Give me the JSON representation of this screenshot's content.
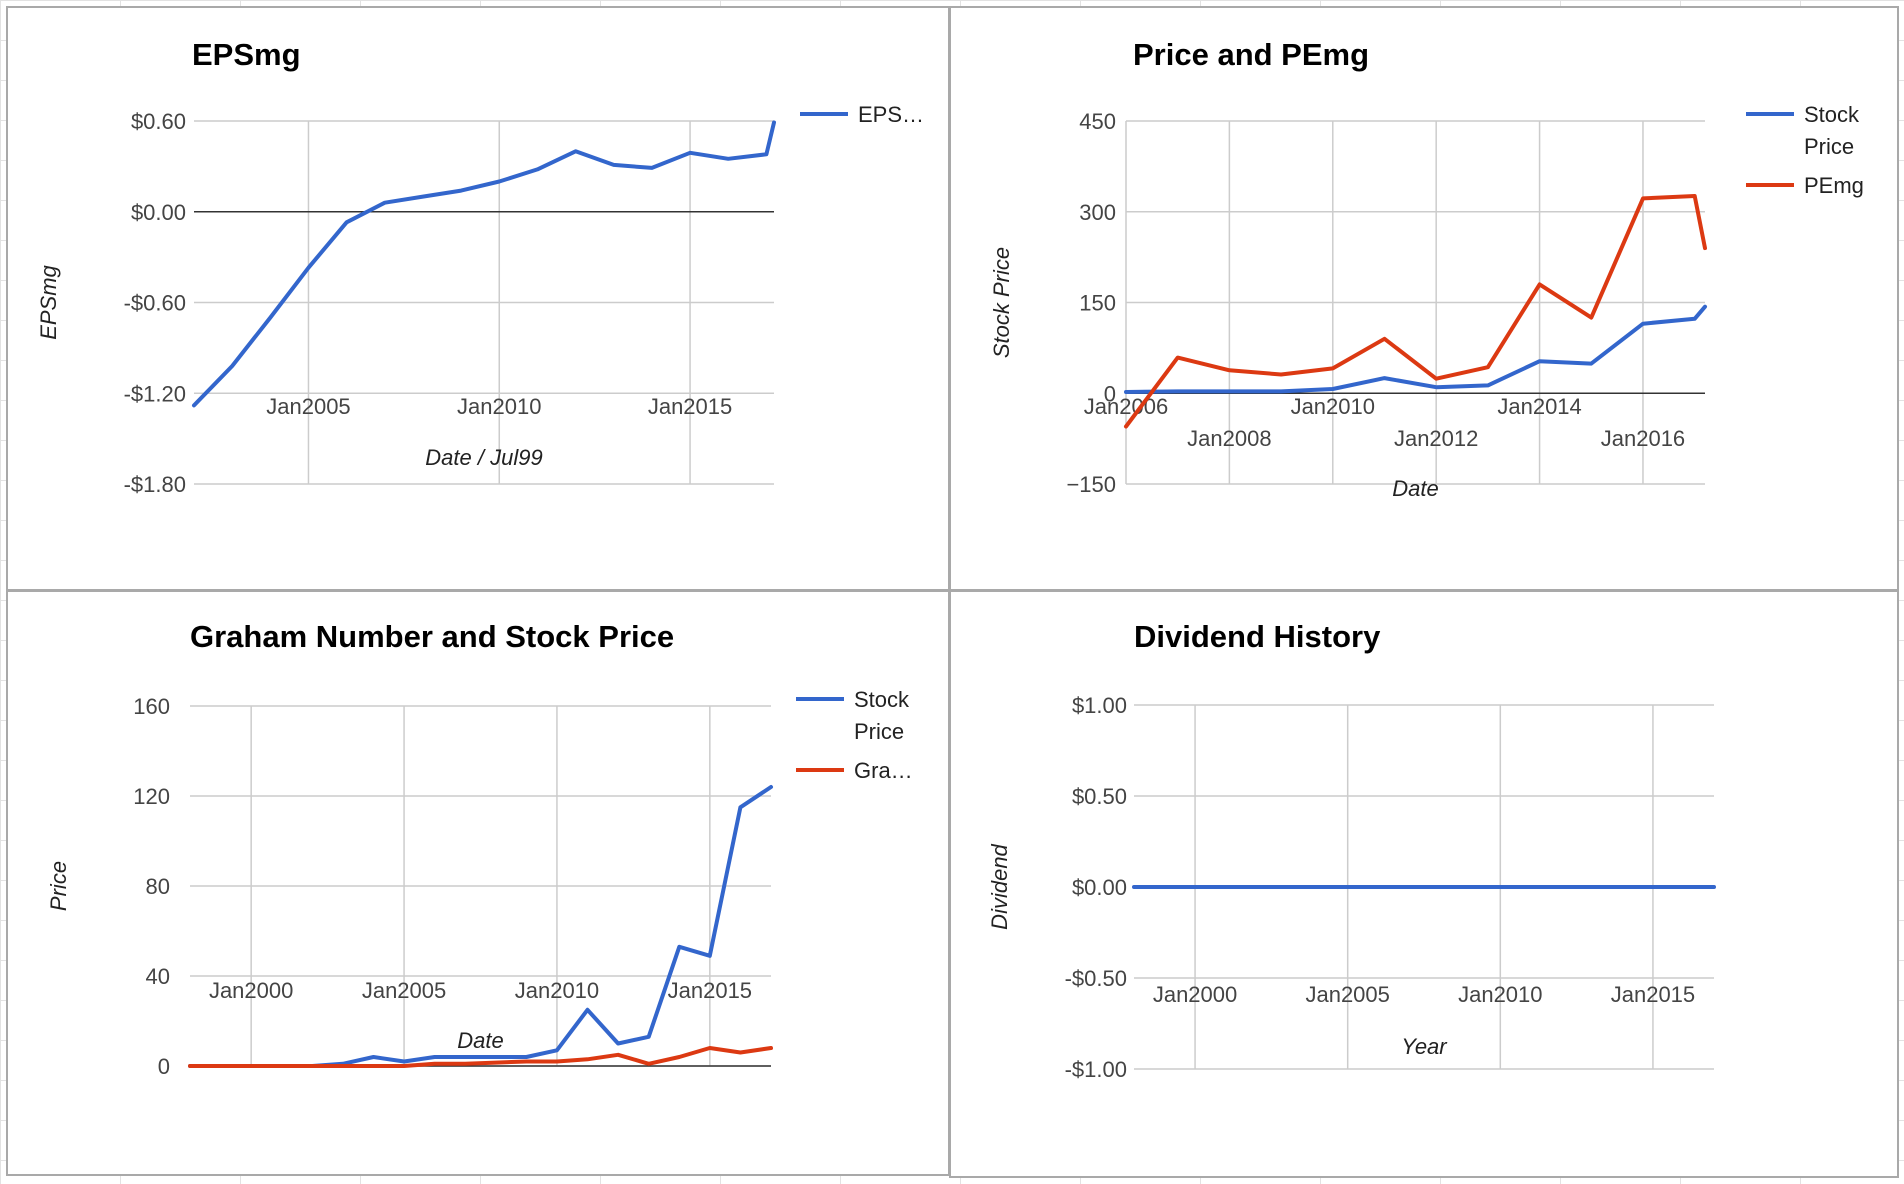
{
  "chart_data": [
    {
      "type": "line",
      "title": "EPSmg",
      "xlabel": "Date / Jul99",
      "ylabel": "EPSmg",
      "xlim": [
        2002.0,
        2017.2
      ],
      "ylim": [
        -1.8,
        0.6
      ],
      "yticks": [
        0.6,
        0.0,
        -0.6,
        -1.2,
        -1.8
      ],
      "ytick_labels": [
        "$0.60",
        "$0.00",
        "-$0.60",
        "-$1.20",
        "-$1.80"
      ],
      "xticks": [
        2005,
        2010,
        2015
      ],
      "xtick_labels": [
        "Jan2005",
        "Jan2010",
        "Jan2015"
      ],
      "grid": true,
      "legend": "right",
      "series": [
        {
          "name": "EPS…",
          "color": "#3366cc",
          "x": [
            2002.0,
            2003.0,
            2004.0,
            2005.0,
            2006.0,
            2007.0,
            2008.0,
            2009.0,
            2010.0,
            2011.0,
            2012.0,
            2013.0,
            2014.0,
            2015.0,
            2016.0,
            2017.0,
            2017.2
          ],
          "y": [
            -1.28,
            -1.02,
            -0.7,
            -0.37,
            -0.07,
            0.06,
            0.1,
            0.14,
            0.2,
            0.28,
            0.4,
            0.31,
            0.29,
            0.39,
            0.35,
            0.38,
            0.59
          ]
        }
      ]
    },
    {
      "type": "line",
      "title": "Price and PEmg",
      "xlabel": "Date",
      "ylabel": "Stock Price",
      "xlim": [
        2006.0,
        2017.2
      ],
      "ylim": [
        -150,
        450
      ],
      "yticks": [
        450,
        300,
        150,
        0,
        -150
      ],
      "ytick_labels": [
        "450",
        "300",
        "150",
        "0",
        "−150"
      ],
      "xticks": [
        2006,
        2008,
        2010,
        2012,
        2014,
        2016
      ],
      "xtick_labels": [
        "Jan2006",
        "Jan2008",
        "Jan2010",
        "Jan2012",
        "Jan2014",
        "Jan2016"
      ],
      "grid": true,
      "legend": "right",
      "series": [
        {
          "name": "Stock Price",
          "color": "#3366cc",
          "x": [
            2006.0,
            2007.0,
            2008.0,
            2009.0,
            2010.0,
            2011.0,
            2012.0,
            2013.0,
            2014.0,
            2015.0,
            2016.0,
            2017.0,
            2017.2
          ],
          "y": [
            2,
            3,
            3,
            3,
            7,
            25,
            10,
            13,
            53,
            49,
            115,
            123,
            143
          ]
        },
        {
          "name": "PEmg",
          "color": "#dc3912",
          "x": [
            2006.0,
            2007.0,
            2008.0,
            2009.0,
            2010.0,
            2011.0,
            2012.0,
            2013.0,
            2014.0,
            2015.0,
            2016.0,
            2017.0,
            2017.2
          ],
          "y": [
            -55,
            59,
            38,
            31,
            41,
            90,
            24,
            43,
            180,
            125,
            322,
            326,
            240
          ]
        }
      ]
    },
    {
      "type": "line",
      "title": "Graham Number and Stock Price",
      "xlabel": "Date",
      "ylabel": "Price",
      "xlim": [
        1998.0,
        2017.0
      ],
      "ylim": [
        0,
        160
      ],
      "yticks": [
        160,
        120,
        80,
        40,
        0
      ],
      "ytick_labels": [
        "160",
        "120",
        "80",
        "40",
        "0"
      ],
      "xticks": [
        2000,
        2005,
        2010,
        2015
      ],
      "xtick_labels": [
        "Jan2000",
        "Jan2005",
        "Jan2010",
        "Jan2015"
      ],
      "grid": true,
      "legend": "right",
      "series": [
        {
          "name": "Stock Price",
          "color": "#3366cc",
          "x": [
            1998.0,
            1999.0,
            2000.0,
            2001.0,
            2002.0,
            2003.0,
            2004.0,
            2005.0,
            2006.0,
            2007.0,
            2008.0,
            2009.0,
            2010.0,
            2011.0,
            2012.0,
            2013.0,
            2014.0,
            2015.0,
            2016.0,
            2017.0
          ],
          "y": [
            0,
            0,
            0,
            0,
            0,
            1,
            4,
            2,
            4,
            4,
            4,
            4,
            7,
            25,
            10,
            13,
            53,
            49,
            115,
            124
          ]
        },
        {
          "name": "Gra…",
          "color": "#dc3912",
          "x": [
            1998.0,
            1999.0,
            2000.0,
            2001.0,
            2002.0,
            2003.0,
            2004.0,
            2005.0,
            2006.0,
            2007.0,
            2008.0,
            2009.0,
            2010.0,
            2011.0,
            2012.0,
            2013.0,
            2014.0,
            2015.0,
            2016.0,
            2017.0
          ],
          "y": [
            0,
            0,
            0,
            0,
            0,
            0,
            0,
            0,
            1,
            1,
            1.5,
            2,
            2,
            3,
            5,
            1,
            4,
            8,
            6,
            8
          ]
        }
      ]
    },
    {
      "type": "line",
      "title": "Dividend History",
      "xlabel": "Year",
      "ylabel": "Dividend",
      "xlim": [
        1998.0,
        2017.0
      ],
      "ylim": [
        -1.0,
        1.0
      ],
      "yticks": [
        1.0,
        0.5,
        0.0,
        -0.5,
        -1.0
      ],
      "ytick_labels": [
        "$1.00",
        "$0.50",
        "$0.00",
        "-$0.50",
        "-$1.00"
      ],
      "xticks": [
        2000,
        2005,
        2010,
        2015
      ],
      "xtick_labels": [
        "Jan2000",
        "Jan2005",
        "Jan2010",
        "Jan2015"
      ],
      "grid": true,
      "legend": "none",
      "series": [
        {
          "color": "#3366cc",
          "x": [
            1998.0,
            2017.0
          ],
          "y": [
            0,
            0
          ]
        }
      ]
    }
  ]
}
